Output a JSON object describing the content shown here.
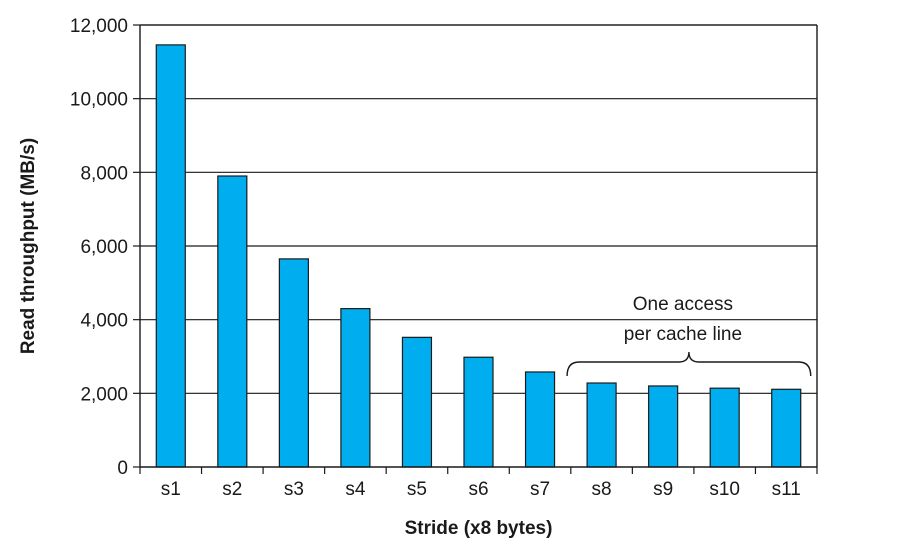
{
  "chart_data": {
    "type": "bar",
    "categories": [
      "s1",
      "s2",
      "s3",
      "s4",
      "s5",
      "s6",
      "s7",
      "s8",
      "s9",
      "s10",
      "s11"
    ],
    "values": [
      11460,
      7900,
      5650,
      4300,
      3520,
      2980,
      2580,
      2280,
      2200,
      2140,
      2110
    ],
    "xlabel": "Stride (x8 bytes)",
    "ylabel": "Read throughput (MB/s)",
    "ylim": [
      0,
      12000
    ],
    "yticks": [
      0,
      2000,
      4000,
      6000,
      8000,
      10000,
      12000
    ],
    "ytick_labels": [
      "0",
      "2,000",
      "4,000",
      "6,000",
      "8,000",
      "10,000",
      "12,000"
    ],
    "grid": true,
    "bar_color": "#00aeef",
    "annotation": {
      "lines": [
        "One access",
        "per cache line"
      ],
      "spans": [
        "s8",
        "s11"
      ]
    }
  }
}
